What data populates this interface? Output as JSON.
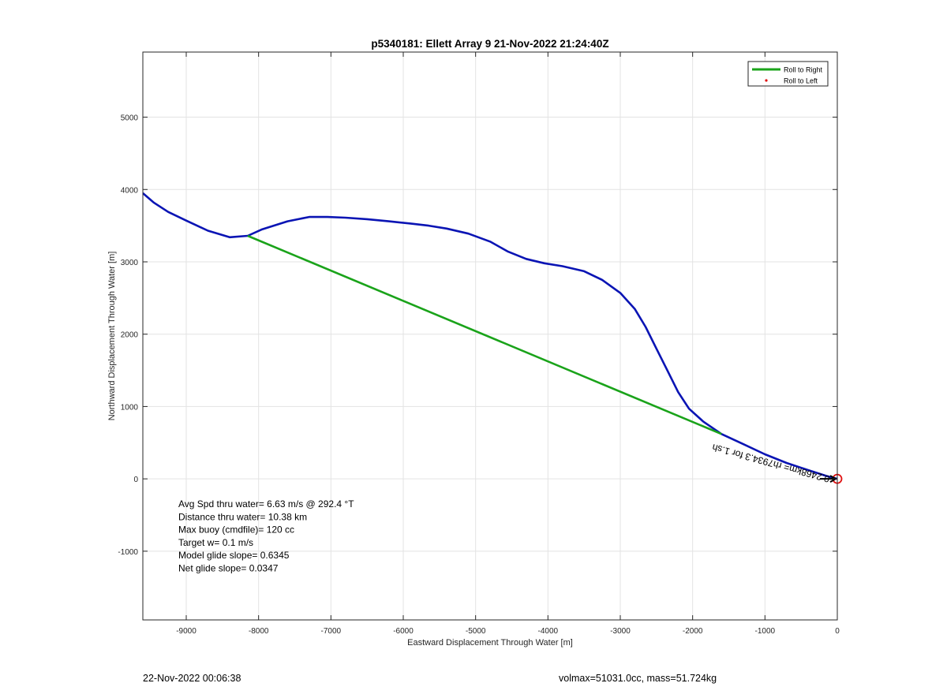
{
  "chart_data": {
    "type": "line",
    "title": "p5340181: Ellett Array 9 21-Nov-2022 21:24:40Z",
    "xlabel": "Eastward Displacement Through Water [m]",
    "ylabel": "Northward Displacement Through Water [m]",
    "xlim": [
      -9600,
      0
    ],
    "ylim": [
      -1950,
      5900
    ],
    "x_ticks": [
      -9000,
      -8000,
      -7000,
      -6000,
      -5000,
      -4000,
      -3000,
      -2000,
      -1000,
      0
    ],
    "y_ticks": [
      -1000,
      0,
      1000,
      2000,
      3000,
      4000,
      5000
    ],
    "grid": true,
    "legend_position": "top-right",
    "legend": [
      {
        "label": "Roll to Right",
        "color": "#1aa31a",
        "style": "line"
      },
      {
        "label": "Roll to Left",
        "color": "#e01010",
        "style": "dot"
      }
    ],
    "series": [
      {
        "color": "#0a14b4",
        "x": [
          -9600,
          -9450,
          -9250,
          -9000,
          -8700,
          -8400,
          -8150,
          -7950,
          -7600,
          -7300,
          -7050,
          -6800,
          -6500,
          -6200,
          -5900,
          -5650,
          -5400,
          -5100,
          -4800,
          -4550,
          -4300,
          -4050,
          -3800,
          -3500,
          -3250,
          -3000,
          -2800,
          -2650,
          -2500,
          -2350,
          -2200,
          -2050,
          -1850,
          -1600,
          -1300,
          -1000,
          -700,
          -400,
          -150,
          0
        ],
        "y": [
          3950,
          3820,
          3690,
          3570,
          3430,
          3340,
          3360,
          3450,
          3560,
          3620,
          3620,
          3610,
          3590,
          3560,
          3530,
          3500,
          3460,
          3390,
          3280,
          3140,
          3040,
          2980,
          2940,
          2870,
          2750,
          2570,
          2350,
          2100,
          1800,
          1500,
          1200,
          970,
          790,
          620,
          480,
          340,
          220,
          120,
          40,
          0
        ]
      },
      {
        "name": "Roll to Right",
        "color": "#1aa31a",
        "x": [
          -8150,
          -1600
        ],
        "y": [
          3360,
          620
        ]
      },
      {
        "name": "Roll to Left",
        "color": "#e01010",
        "marker": "circle",
        "x": [
          0
        ],
        "y": [
          0
        ]
      }
    ],
    "annotations": [
      {
        "text": "Avg Spd thru water=  6.63 m/s @ 292.4 °T"
      },
      {
        "text": "Distance thru water= 10.38 km"
      },
      {
        "text": "Max buoy (cmdfile)= 120 cc"
      },
      {
        "text": "Target w= 0.1 m/s"
      },
      {
        "text": "Model glide slope= 0.6345"
      },
      {
        "text": "Net glide slope= 0.0347"
      }
    ],
    "rotated_label": "0.2468km= rh7934.3 for 1.sh"
  },
  "footer": {
    "left": "22-Nov-2022 00:06:38",
    "right": "volmax=51031.0cc, mass=51.724kg"
  }
}
